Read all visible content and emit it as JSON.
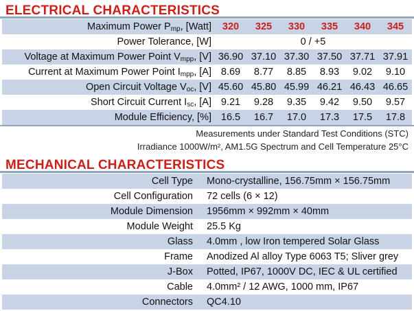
{
  "electrical": {
    "title": "ELECTRICAL CHARACTERISTICS",
    "header_label": "Maximum Power P",
    "header_label_sub": "mp",
    "header_label_unit": ", [Watt]",
    "models": [
      "320",
      "325",
      "330",
      "335",
      "340",
      "345"
    ],
    "tolerance_label": "Power Tolerance, [W]",
    "tolerance_value": "0 / +5",
    "rows": [
      {
        "label": "Voltage at Maximum Power Point V",
        "sub": "mpp",
        "unit": ", [V]",
        "values": [
          "36.90",
          "37.10",
          "37.30",
          "37.50",
          "37.71",
          "37.91"
        ]
      },
      {
        "label": "Current at Maximum Power Point I",
        "sub": "mpp",
        "unit": ", [A]",
        "values": [
          "8.69",
          "8.77",
          "8.85",
          "8.93",
          "9.02",
          "9.10"
        ]
      },
      {
        "label": "Open Circuit Voltage V",
        "sub": "oc",
        "unit": ", [V]",
        "values": [
          "45.60",
          "45.80",
          "45.99",
          "46.21",
          "46.43",
          "46.65"
        ]
      },
      {
        "label": "Short Circuit Current I",
        "sub": "sc",
        "unit": ", [A]",
        "values": [
          "9.21",
          "9.28",
          "9.35",
          "9.42",
          "9.50",
          "9.57"
        ]
      },
      {
        "label": "Module Efficiency, [%]",
        "sub": "",
        "unit": "",
        "values": [
          "16.5",
          "16.7",
          "17.0",
          "17.3",
          "17.5",
          "17.8"
        ]
      }
    ],
    "note_line1": "Measurements under Standard Test Conditions (STC)",
    "note_line2": "Irradiance 1000W/m², AM1.5G Spectrum and Cell Temperature 25°C"
  },
  "mechanical": {
    "title": "MECHANICAL CHARACTERISTICS",
    "rows": [
      {
        "label": "Cell Type",
        "value": "Mono-crystalline, 156.75mm × 156.75mm"
      },
      {
        "label": "Cell Configuration",
        "value": "72 cells (6 × 12)"
      },
      {
        "label": "Module Dimension",
        "value": "1956mm × 992mm × 40mm"
      },
      {
        "label": "Module Weight",
        "value": "25.5 Kg"
      },
      {
        "label": "Glass",
        "value": "4.0mm , low Iron tempered Solar Glass"
      },
      {
        "label": "Frame",
        "value": "Anodized Al alloy Type 6063 T5; Sliver grey"
      },
      {
        "label": "J-Box",
        "value": "Potted, IP67, 1000V DC, IEC & UL certified"
      },
      {
        "label": "Cable",
        "value": "4.0mm² / 12 AWG, 1000 mm, IP67"
      },
      {
        "label": "Connectors",
        "value": "QC4.10"
      }
    ]
  }
}
